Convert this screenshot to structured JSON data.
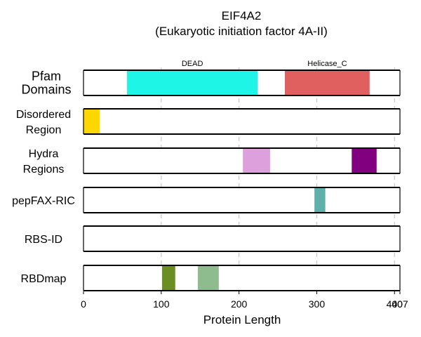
{
  "chart_data": {
    "type": "bar",
    "title": "EIF4A2",
    "subtitle": "(Eukaryotic initiation factor 4A-II)",
    "xlabel": "Protein Length",
    "xlim": [
      0,
      407
    ],
    "xticks": [
      0,
      100,
      200,
      300,
      400,
      407
    ],
    "xtick_labels": [
      "0",
      "100",
      "200",
      "300",
      "400",
      "407"
    ],
    "grid": "vertical dashed at 100, 200, 300, 400",
    "tracks": [
      {
        "label_lines": [
          "Pfam",
          "Domains"
        ],
        "segments": [
          {
            "start": 56,
            "end": 224,
            "color": "#1ef5e6",
            "label": "DEAD"
          },
          {
            "start": 259,
            "end": 368,
            "color": "#e06060",
            "label": "Helicase_C"
          }
        ]
      },
      {
        "label_lines": [
          "Disordered",
          "Region"
        ],
        "segments": [
          {
            "start": 0,
            "end": 21,
            "color": "#ffd700"
          }
        ]
      },
      {
        "label_lines": [
          "Hydra",
          "Regions"
        ],
        "segments": [
          {
            "start": 205,
            "end": 240,
            "color": "#dda0dd"
          },
          {
            "start": 345,
            "end": 377,
            "color": "#800080"
          }
        ]
      },
      {
        "label_lines": [
          "pepFAX-RIC"
        ],
        "segments": [
          {
            "start": 297,
            "end": 311,
            "color": "#5fafaa"
          }
        ]
      },
      {
        "label_lines": [
          "RBS-ID"
        ],
        "segments": []
      },
      {
        "label_lines": [
          "RBDmap"
        ],
        "segments": [
          {
            "start": 101,
            "end": 118,
            "color": "#6b8e23"
          },
          {
            "start": 147,
            "end": 174,
            "color": "#8fbc8f"
          }
        ]
      }
    ]
  }
}
